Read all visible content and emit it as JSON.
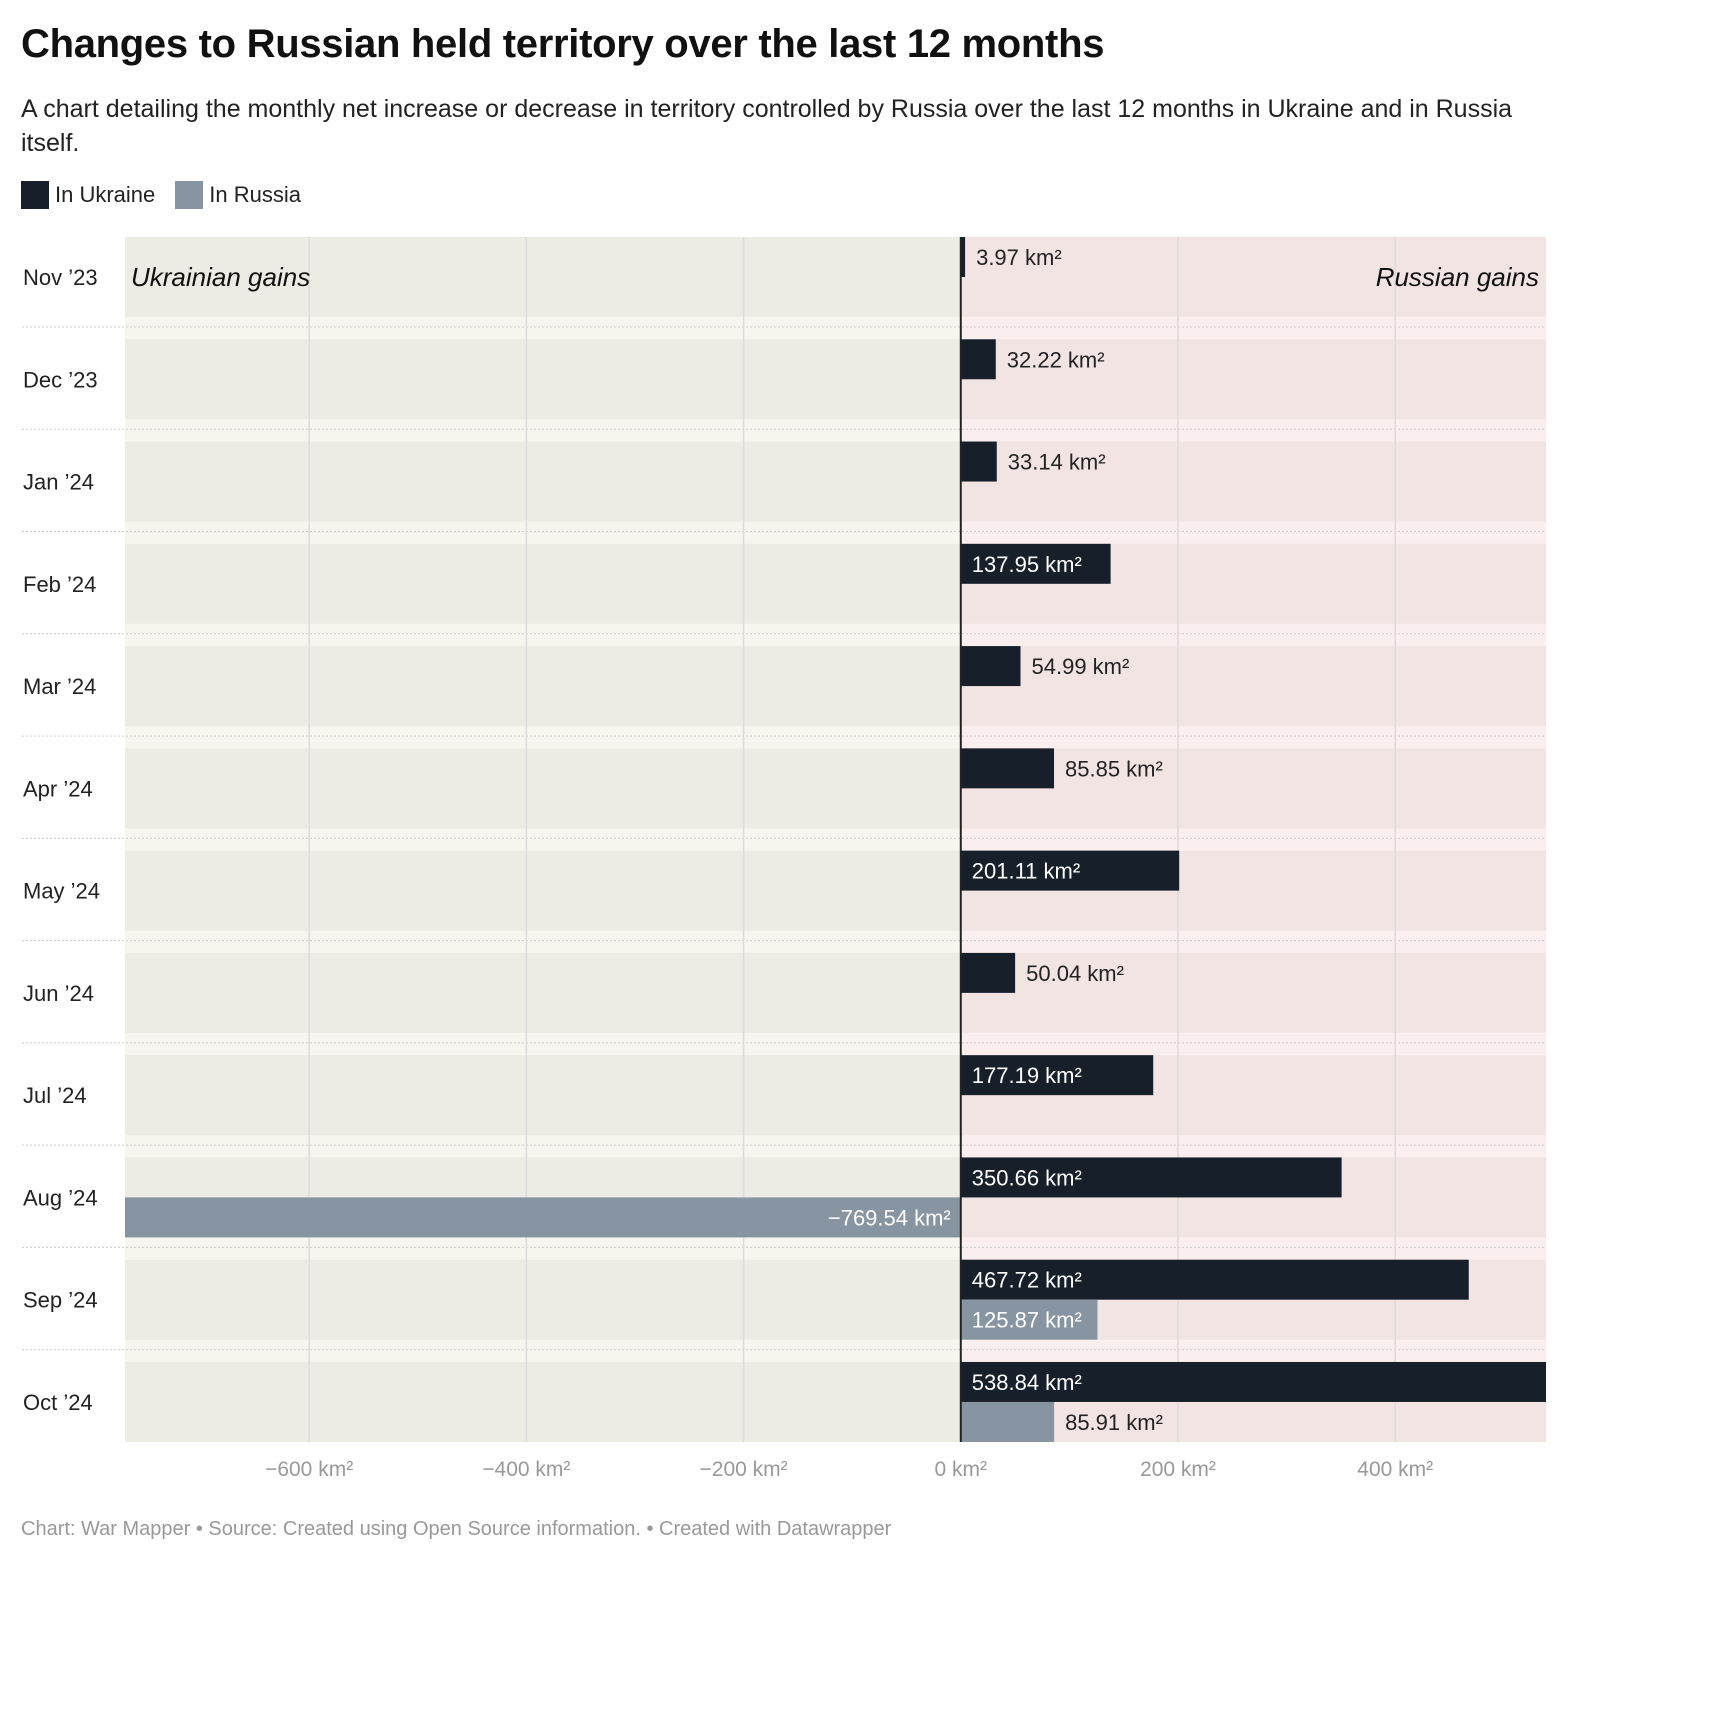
{
  "chart_data": {
    "type": "bar",
    "orientation": "horizontal",
    "title": "Changes to Russian held territory over the last 12 months",
    "subtitle": "A chart detailing the monthly net increase or decrease in territory controlled by Russia over the last 12 months in Ukraine and in Russia itself.",
    "categories": [
      "Nov ’23",
      "Dec ’23",
      "Jan ’24",
      "Feb ’24",
      "Mar ’24",
      "Apr ’24",
      "May ’24",
      "Jun ’24",
      "Jul ’24",
      "Aug ’24",
      "Sep ’24",
      "Oct ’24"
    ],
    "series": [
      {
        "name": "In Ukraine",
        "color": "#17202a",
        "values": [
          3.97,
          32.22,
          33.14,
          137.95,
          54.99,
          85.85,
          201.11,
          50.04,
          177.19,
          350.66,
          467.72,
          538.84
        ],
        "labels": [
          "3.97 km²",
          "32.22 km²",
          "33.14 km²",
          "137.95 km²",
          "54.99 km²",
          "85.85 km²",
          "201.11 km²",
          "50.04 km²",
          "177.19 km²",
          "350.66 km²",
          "467.72 km²",
          "538.84 km²"
        ]
      },
      {
        "name": "In Russia",
        "color": "#8794a1",
        "values": [
          null,
          null,
          null,
          null,
          null,
          null,
          null,
          null,
          null,
          -769.54,
          125.87,
          85.91
        ],
        "labels": [
          "",
          "",
          "",
          "",
          "",
          "",
          "",
          "",
          "",
          "−769.54 km²",
          "125.87 km²",
          "85.91 km²"
        ]
      }
    ],
    "xlim": [
      -769.54,
      538.84
    ],
    "xticks": [
      -600,
      -400,
      -200,
      0,
      200,
      400
    ],
    "xtick_labels": [
      "−600 km²",
      "−400 km²",
      "−200 km²",
      "0 km²",
      "200 km²",
      "400 km²"
    ],
    "annotations": [
      "Ukrainian gains",
      "Russian gains"
    ],
    "region_colors": {
      "negative": "#ecebe4",
      "positive": "#f3e4e4"
    },
    "grid": true,
    "legend": "top-left"
  },
  "footer": "Chart: War Mapper • Source: Created using Open Source information.  • Created with Datawrapper"
}
